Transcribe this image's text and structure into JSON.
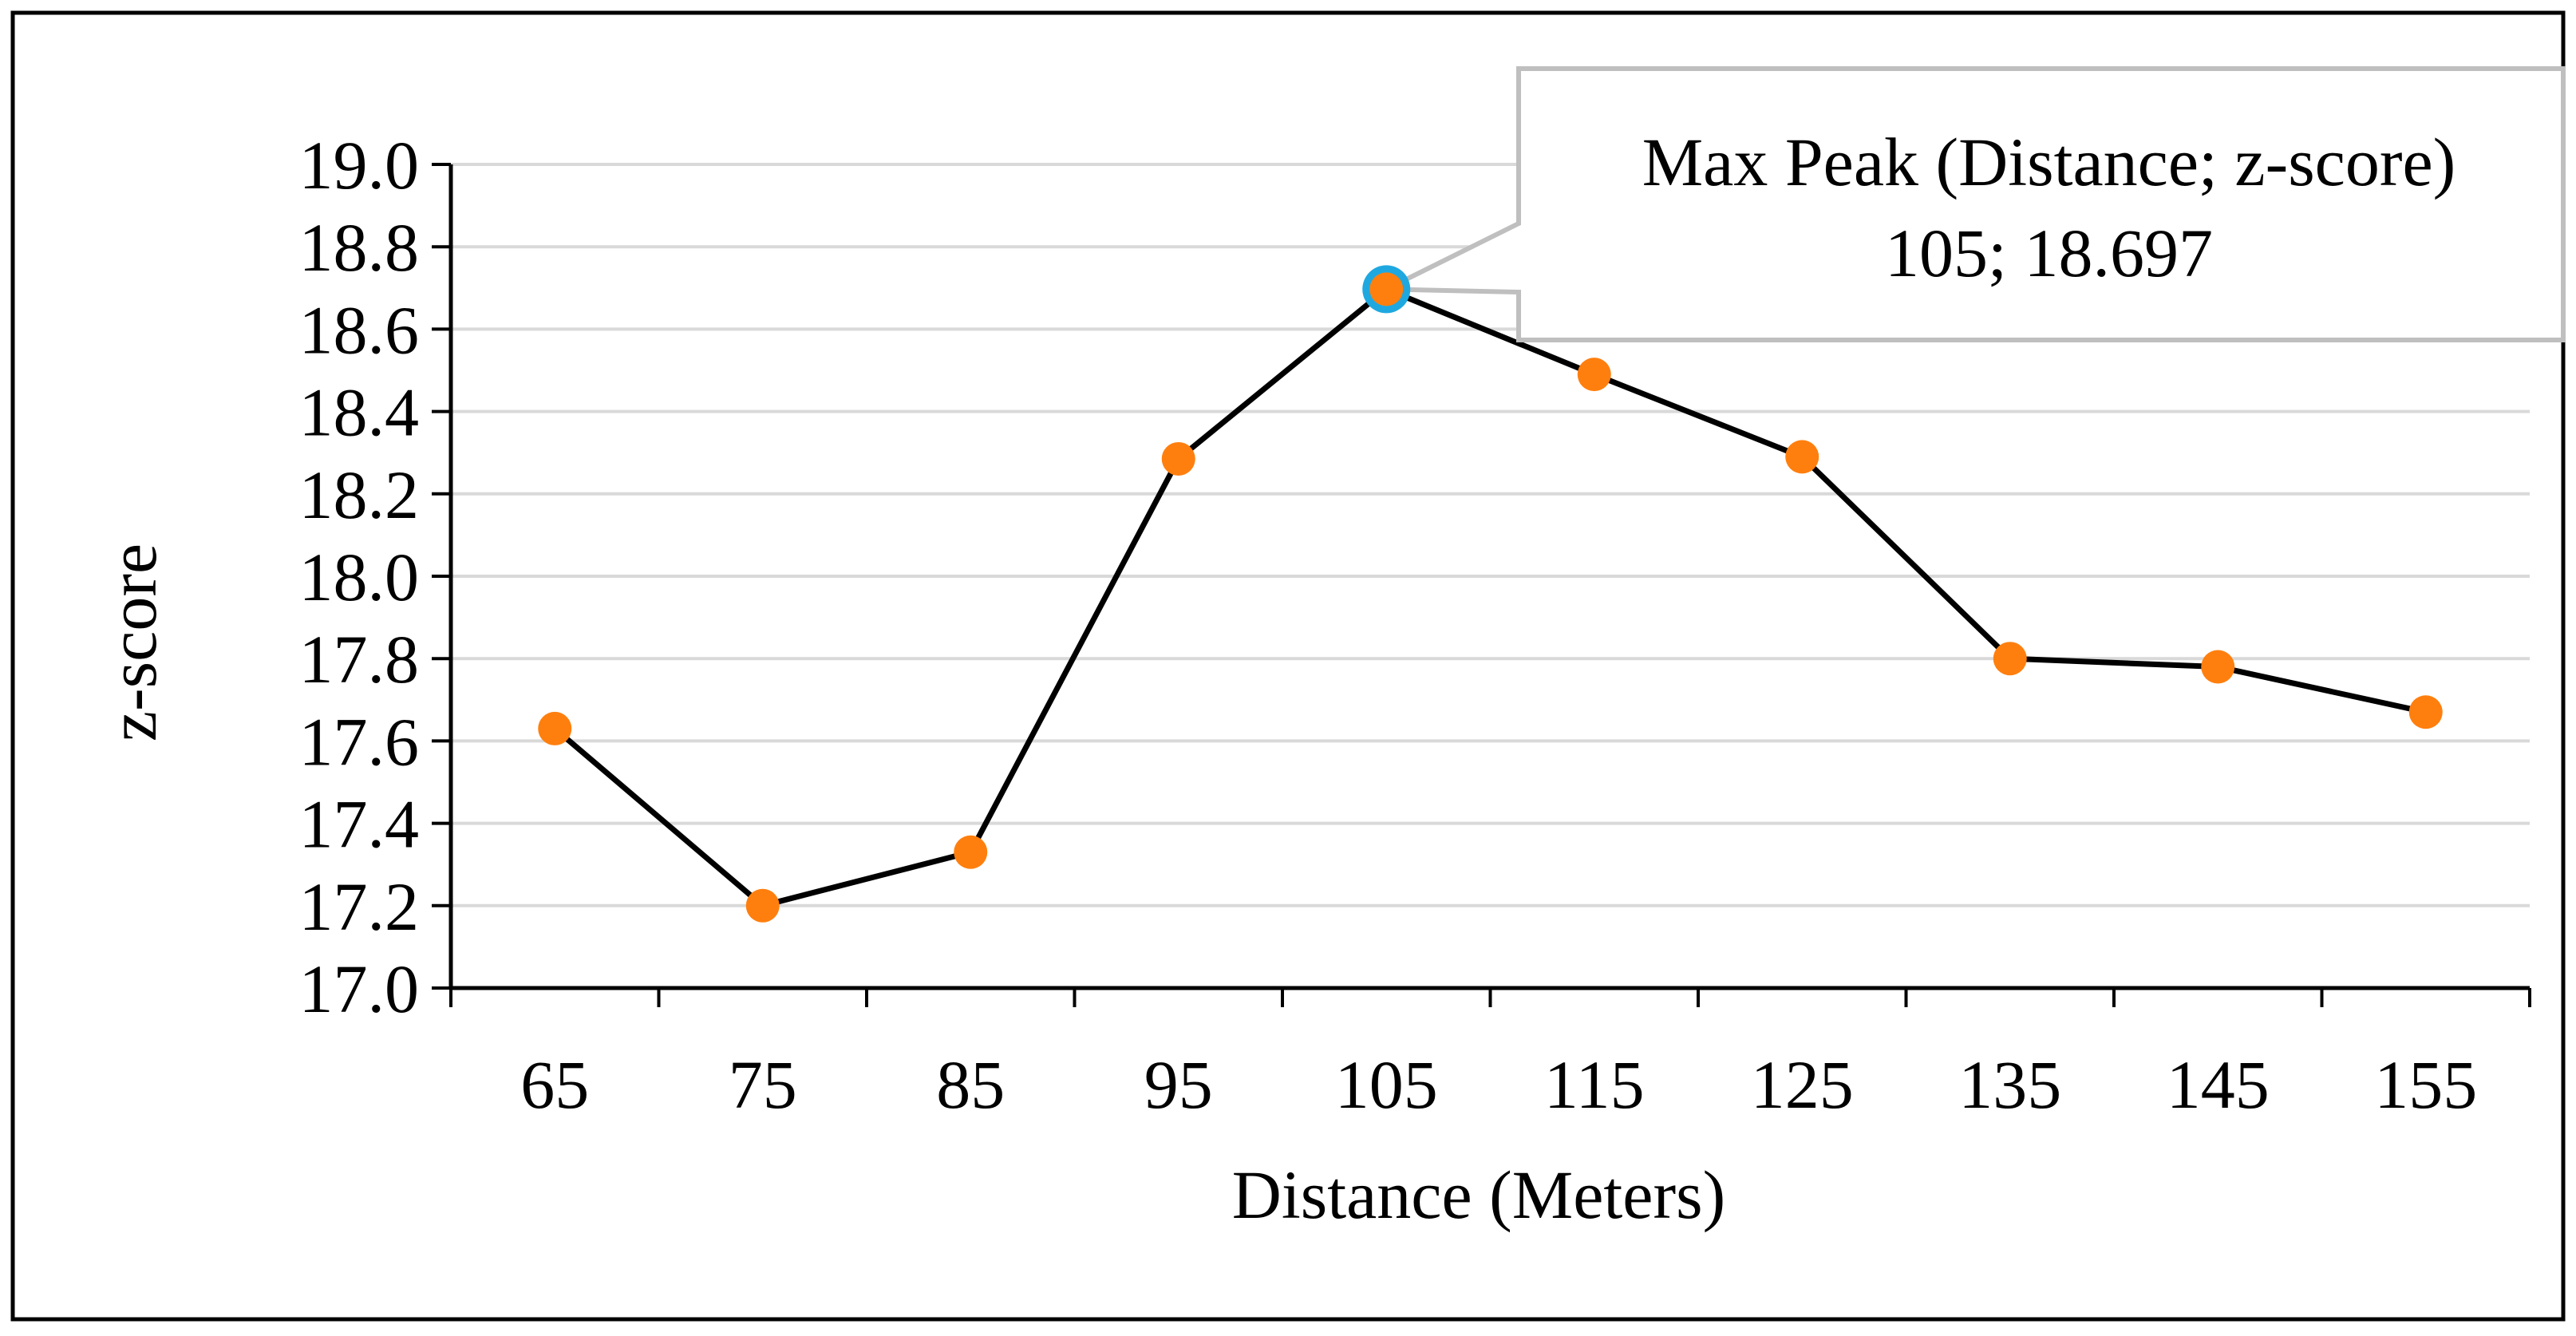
{
  "chart_data": {
    "type": "line",
    "title": "",
    "xlabel": "Distance (Meters)",
    "ylabel": "z-score",
    "categories": [
      "65",
      "75",
      "85",
      "95",
      "105",
      "115",
      "125",
      "135",
      "145",
      "155"
    ],
    "series": [
      {
        "name": "z-score",
        "values": [
          17.63,
          17.2,
          17.33,
          18.285,
          18.697,
          18.49,
          18.29,
          17.8,
          17.78,
          17.67
        ]
      }
    ],
    "ylim": [
      17.0,
      19.0
    ],
    "yticks": [
      "17.0",
      "17.2",
      "17.4",
      "17.6",
      "17.8",
      "18.0",
      "18.2",
      "18.4",
      "18.6",
      "18.8",
      "19.0"
    ],
    "grid": true,
    "legend": "none",
    "annotation": {
      "target_index": 4,
      "line1": "Max Peak (Distance; z-score)",
      "line2": "105; 18.697"
    },
    "colors": {
      "line": "#000000",
      "marker": "#ff7f0e",
      "highlight_ring": "#1fa8e0",
      "grid": "#d9d9d9",
      "callout_border": "#bfbfbf"
    }
  }
}
